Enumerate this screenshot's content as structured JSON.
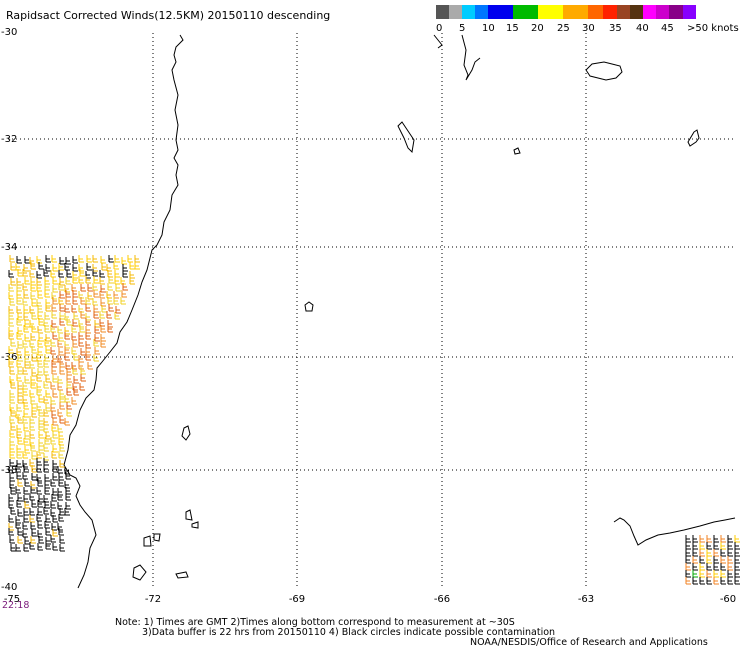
{
  "title": "Rapidsact Corrected Winds(12.5KM) 20150110 descending",
  "legend": {
    "tick_labels": [
      "0",
      "5",
      "10",
      "15",
      "20",
      "25",
      "30",
      "35",
      "40",
      "45",
      ">50 knots"
    ],
    "colors": [
      "#555555",
      "#aaaaaa",
      "#00ccff",
      "#0077ff",
      "#0000ee",
      "#00bb00",
      "#ffff00",
      "#ffaa00",
      "#ff6600",
      "#ff0000",
      "#cc2200",
      "#994422",
      "#553311",
      "#ff00ff",
      "#cc00cc",
      "#880088",
      "#8800ff"
    ]
  },
  "axes": {
    "lat_labels": [
      "-30",
      "-32",
      "-34",
      "-36",
      "-38",
      "-40"
    ],
    "lon_labels": [
      "-75",
      "-72",
      "-69",
      "-66",
      "-63",
      "-60"
    ],
    "lat_range": [
      -40,
      -30
    ],
    "lon_range": [
      -75,
      -60
    ],
    "grid": "dotted"
  },
  "time_label": "22:18",
  "notes": {
    "line1": "Note: 1) Times are GMT 2)Times along bottom correspond to measurement at ~30S",
    "line2": "3)Data buffer is 22 hrs from 20150110 4) Black circles indicate possible contamination",
    "line3": "NOAA/NESDIS/Office of Research and Applications"
  }
}
